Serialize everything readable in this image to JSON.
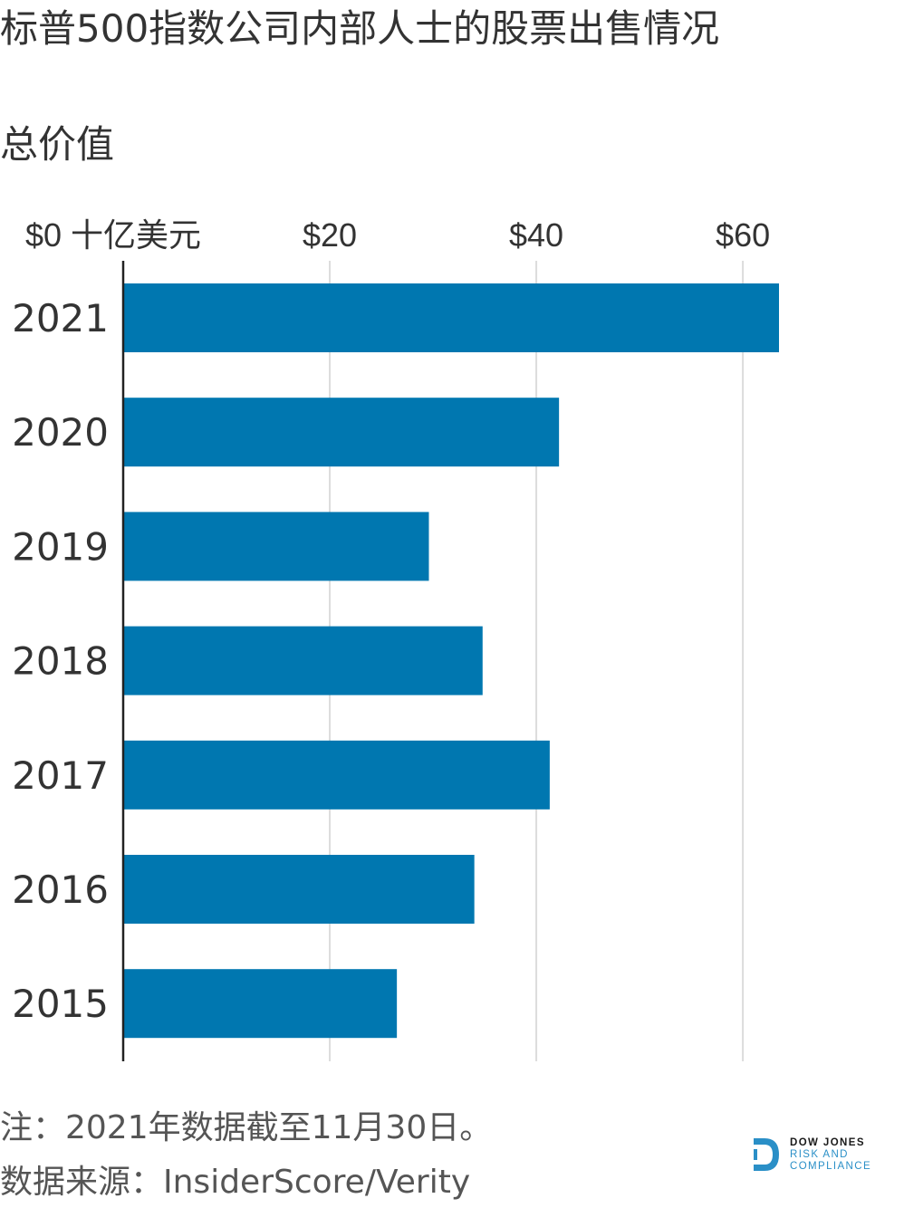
{
  "chart_data": {
    "type": "bar",
    "orientation": "horizontal",
    "title": "标普500指数公司内部人士的股票出售情况",
    "subtitle": "总价值",
    "axis_unit_label": "十亿美元",
    "categories": [
      "2021",
      "2020",
      "2019",
      "2018",
      "2017",
      "2016",
      "2015"
    ],
    "values": [
      63.5,
      42.2,
      29.6,
      34.8,
      41.3,
      34.0,
      26.5
    ],
    "xlim": [
      0,
      63.5
    ],
    "xticks": [
      0,
      20,
      40,
      60
    ],
    "xtick_labels": [
      "$0",
      "$20",
      "$40",
      "$60"
    ],
    "grid": true,
    "bar_color": "#0077b0",
    "grid_color": "#dcdcdc",
    "axis_color": "#222222"
  },
  "footer": {
    "note": "注：2021年数据截至11月30日。",
    "source": "数据来源：InsiderScore/Verity"
  },
  "logo": {
    "line1": "DOW JONES",
    "line2": "RISK AND",
    "line3": "COMPLIANCE",
    "accent_color": "#2a8fc7"
  }
}
